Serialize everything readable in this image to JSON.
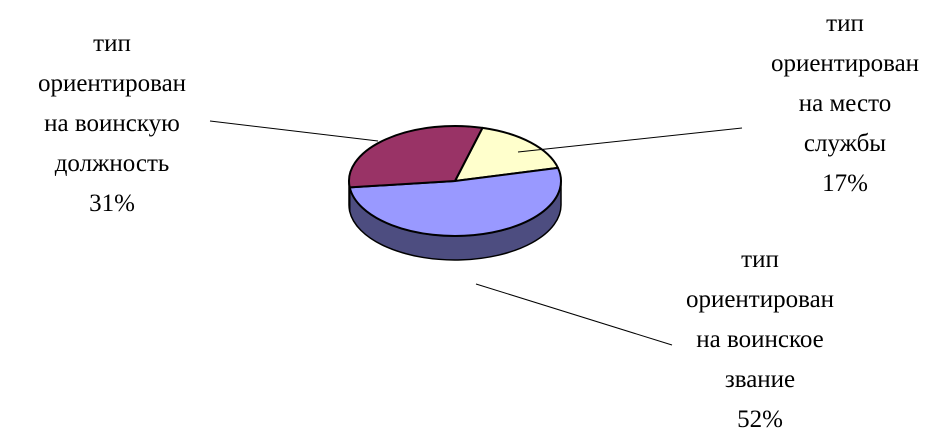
{
  "chart_data": {
    "type": "pie",
    "title": "",
    "slices": [
      {
        "lines": [
          "тип",
          "ориентирован",
          "на место",
          "службы"
        ],
        "percent_label": "17%",
        "value": 17,
        "color": "#ffffcc",
        "side_color": "#cccc99"
      },
      {
        "lines": [
          "тип",
          "ориентирован",
          "на воинское",
          "звание"
        ],
        "percent_label": "52%",
        "value": 52,
        "color": "#9999ff",
        "side_color": "#4d4d80"
      },
      {
        "lines": [
          "тип",
          "ориентирован",
          "на воинскую",
          "должность"
        ],
        "percent_label": "31%",
        "value": 31,
        "color": "#993366",
        "side_color": "#4d1a33"
      }
    ]
  }
}
